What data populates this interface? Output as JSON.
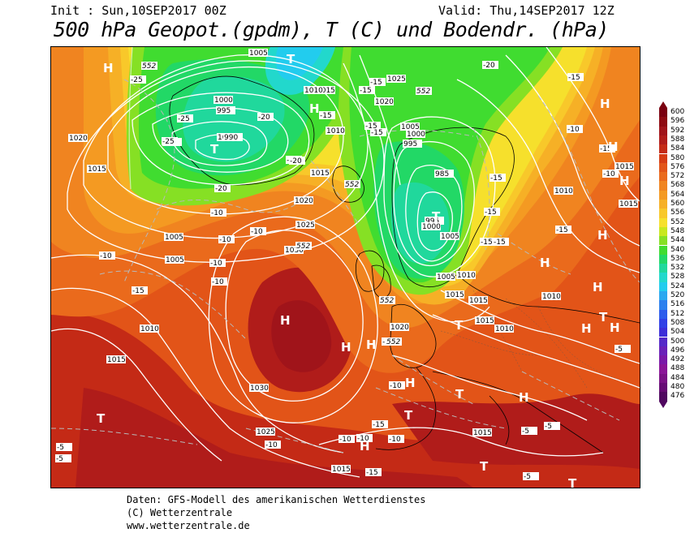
{
  "header": {
    "init": "Init : Sun,10SEP2017 00Z",
    "valid": "Valid: Thu,14SEP2017 12Z",
    "title": "500 hPa Geopot.(gpdm), T (C) und Bodendr. (hPa)"
  },
  "legend": {
    "values": [
      "600",
      "596",
      "592",
      "588",
      "584",
      "580",
      "576",
      "572",
      "568",
      "564",
      "560",
      "556",
      "552",
      "548",
      "544",
      "540",
      "536",
      "532",
      "528",
      "524",
      "520",
      "516",
      "512",
      "508",
      "504",
      "500",
      "496",
      "492",
      "488",
      "484",
      "480",
      "476"
    ],
    "colors": [
      "#7a0010",
      "#8e0a12",
      "#a0141a",
      "#b01c1a",
      "#c42a16",
      "#d63c14",
      "#e25418",
      "#ea6a1c",
      "#f08420",
      "#f49a22",
      "#f6b026",
      "#f8c82a",
      "#f6e02c",
      "#c8e81e",
      "#86e024",
      "#40dc30",
      "#22d866",
      "#20d89c",
      "#22d8cc",
      "#22ccee",
      "#2aa8f0",
      "#2c80ee",
      "#2c5cec",
      "#3040e6",
      "#3c2ed8",
      "#5428c8",
      "#6a20b8",
      "#7a18a8",
      "#8a1498",
      "#7a1086",
      "#660a74",
      "#500860"
    ]
  },
  "map": {
    "pressure_labels": [
      "1005",
      "1000",
      "995",
      "990",
      "1010",
      "1015",
      "1025",
      "1020",
      "1005",
      "1000",
      "995",
      "990",
      "985",
      "995",
      "1000",
      "1005",
      "1010",
      "1015",
      "1020",
      "1025",
      "1030",
      "1020",
      "1015",
      "1010",
      "1005",
      "1005",
      "1010",
      "1015",
      "1020",
      "1015",
      "1010",
      "1015",
      "1015",
      "1010",
      "1010",
      "1015",
      "1015",
      "1030",
      "1025",
      "1015",
      "1015",
      "1010",
      "1005"
    ],
    "temp_labels": [
      "-25",
      "-25",
      "-25",
      "-20",
      "-20",
      "-15",
      "-15",
      "-15",
      "-20",
      "-15",
      "-15",
      "-15",
      "-15",
      "-15",
      "-10",
      "-10",
      "-10",
      "-10",
      "-10",
      "-15",
      "-10",
      "-15",
      "-10",
      "-10",
      "-15",
      "-15",
      "-15",
      "-15",
      "-10",
      "-10",
      "-5",
      "-5",
      "-5",
      "-10",
      "-10",
      "-10",
      "-10",
      "-5",
      "-5",
      "-5",
      "-15",
      "-15",
      "-20"
    ],
    "height_labels": [
      "552",
      "552",
      "552",
      "552",
      "552",
      "552"
    ],
    "pressure_centers": [
      "H",
      "H",
      "H",
      "H",
      "T",
      "T",
      "T",
      "H",
      "H",
      "H",
      "H",
      "H",
      "H",
      "T",
      "T",
      "H",
      "H",
      "T",
      "H",
      "T",
      "T",
      "H",
      "H",
      "H",
      "T",
      "T"
    ]
  },
  "footer": {
    "line1": "Daten: GFS-Modell des amerikanischen Wetterdienstes",
    "line2": "(C) Wetterzentrale",
    "line3": "www.wetterzentrale.de"
  }
}
